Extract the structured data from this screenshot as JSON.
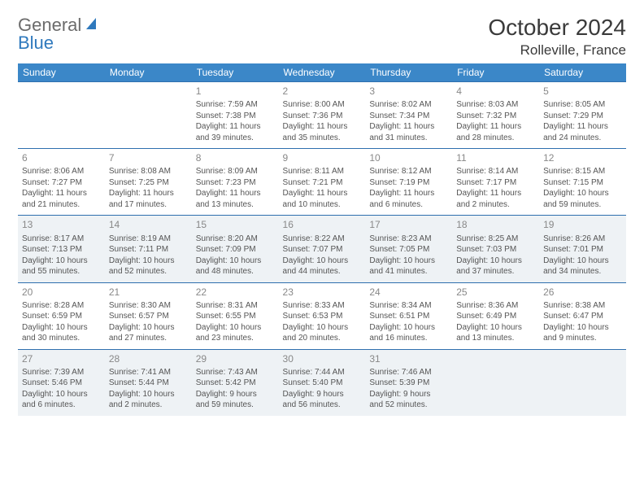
{
  "logo": {
    "text1": "General",
    "text2": "Blue"
  },
  "title": "October 2024",
  "location": "Rolleville, France",
  "colors": {
    "header_bg": "#3b87c8",
    "header_text": "#ffffff",
    "shade_bg": "#eef2f5",
    "sep_border": "#2f6fae",
    "logo_gray": "#6b6b6b",
    "logo_blue": "#2f79bd"
  },
  "day_headers": [
    "Sunday",
    "Monday",
    "Tuesday",
    "Wednesday",
    "Thursday",
    "Friday",
    "Saturday"
  ],
  "weeks": [
    {
      "shaded": false,
      "days": [
        null,
        null,
        {
          "n": "1",
          "sr": "Sunrise: 7:59 AM",
          "ss": "Sunset: 7:38 PM",
          "dl1": "Daylight: 11 hours",
          "dl2": "and 39 minutes."
        },
        {
          "n": "2",
          "sr": "Sunrise: 8:00 AM",
          "ss": "Sunset: 7:36 PM",
          "dl1": "Daylight: 11 hours",
          "dl2": "and 35 minutes."
        },
        {
          "n": "3",
          "sr": "Sunrise: 8:02 AM",
          "ss": "Sunset: 7:34 PM",
          "dl1": "Daylight: 11 hours",
          "dl2": "and 31 minutes."
        },
        {
          "n": "4",
          "sr": "Sunrise: 8:03 AM",
          "ss": "Sunset: 7:32 PM",
          "dl1": "Daylight: 11 hours",
          "dl2": "and 28 minutes."
        },
        {
          "n": "5",
          "sr": "Sunrise: 8:05 AM",
          "ss": "Sunset: 7:29 PM",
          "dl1": "Daylight: 11 hours",
          "dl2": "and 24 minutes."
        }
      ]
    },
    {
      "shaded": false,
      "days": [
        {
          "n": "6",
          "sr": "Sunrise: 8:06 AM",
          "ss": "Sunset: 7:27 PM",
          "dl1": "Daylight: 11 hours",
          "dl2": "and 21 minutes."
        },
        {
          "n": "7",
          "sr": "Sunrise: 8:08 AM",
          "ss": "Sunset: 7:25 PM",
          "dl1": "Daylight: 11 hours",
          "dl2": "and 17 minutes."
        },
        {
          "n": "8",
          "sr": "Sunrise: 8:09 AM",
          "ss": "Sunset: 7:23 PM",
          "dl1": "Daylight: 11 hours",
          "dl2": "and 13 minutes."
        },
        {
          "n": "9",
          "sr": "Sunrise: 8:11 AM",
          "ss": "Sunset: 7:21 PM",
          "dl1": "Daylight: 11 hours",
          "dl2": "and 10 minutes."
        },
        {
          "n": "10",
          "sr": "Sunrise: 8:12 AM",
          "ss": "Sunset: 7:19 PM",
          "dl1": "Daylight: 11 hours",
          "dl2": "and 6 minutes."
        },
        {
          "n": "11",
          "sr": "Sunrise: 8:14 AM",
          "ss": "Sunset: 7:17 PM",
          "dl1": "Daylight: 11 hours",
          "dl2": "and 2 minutes."
        },
        {
          "n": "12",
          "sr": "Sunrise: 8:15 AM",
          "ss": "Sunset: 7:15 PM",
          "dl1": "Daylight: 10 hours",
          "dl2": "and 59 minutes."
        }
      ]
    },
    {
      "shaded": true,
      "days": [
        {
          "n": "13",
          "sr": "Sunrise: 8:17 AM",
          "ss": "Sunset: 7:13 PM",
          "dl1": "Daylight: 10 hours",
          "dl2": "and 55 minutes."
        },
        {
          "n": "14",
          "sr": "Sunrise: 8:19 AM",
          "ss": "Sunset: 7:11 PM",
          "dl1": "Daylight: 10 hours",
          "dl2": "and 52 minutes."
        },
        {
          "n": "15",
          "sr": "Sunrise: 8:20 AM",
          "ss": "Sunset: 7:09 PM",
          "dl1": "Daylight: 10 hours",
          "dl2": "and 48 minutes."
        },
        {
          "n": "16",
          "sr": "Sunrise: 8:22 AM",
          "ss": "Sunset: 7:07 PM",
          "dl1": "Daylight: 10 hours",
          "dl2": "and 44 minutes."
        },
        {
          "n": "17",
          "sr": "Sunrise: 8:23 AM",
          "ss": "Sunset: 7:05 PM",
          "dl1": "Daylight: 10 hours",
          "dl2": "and 41 minutes."
        },
        {
          "n": "18",
          "sr": "Sunrise: 8:25 AM",
          "ss": "Sunset: 7:03 PM",
          "dl1": "Daylight: 10 hours",
          "dl2": "and 37 minutes."
        },
        {
          "n": "19",
          "sr": "Sunrise: 8:26 AM",
          "ss": "Sunset: 7:01 PM",
          "dl1": "Daylight: 10 hours",
          "dl2": "and 34 minutes."
        }
      ]
    },
    {
      "shaded": false,
      "days": [
        {
          "n": "20",
          "sr": "Sunrise: 8:28 AM",
          "ss": "Sunset: 6:59 PM",
          "dl1": "Daylight: 10 hours",
          "dl2": "and 30 minutes."
        },
        {
          "n": "21",
          "sr": "Sunrise: 8:30 AM",
          "ss": "Sunset: 6:57 PM",
          "dl1": "Daylight: 10 hours",
          "dl2": "and 27 minutes."
        },
        {
          "n": "22",
          "sr": "Sunrise: 8:31 AM",
          "ss": "Sunset: 6:55 PM",
          "dl1": "Daylight: 10 hours",
          "dl2": "and 23 minutes."
        },
        {
          "n": "23",
          "sr": "Sunrise: 8:33 AM",
          "ss": "Sunset: 6:53 PM",
          "dl1": "Daylight: 10 hours",
          "dl2": "and 20 minutes."
        },
        {
          "n": "24",
          "sr": "Sunrise: 8:34 AM",
          "ss": "Sunset: 6:51 PM",
          "dl1": "Daylight: 10 hours",
          "dl2": "and 16 minutes."
        },
        {
          "n": "25",
          "sr": "Sunrise: 8:36 AM",
          "ss": "Sunset: 6:49 PM",
          "dl1": "Daylight: 10 hours",
          "dl2": "and 13 minutes."
        },
        {
          "n": "26",
          "sr": "Sunrise: 8:38 AM",
          "ss": "Sunset: 6:47 PM",
          "dl1": "Daylight: 10 hours",
          "dl2": "and 9 minutes."
        }
      ]
    },
    {
      "shaded": true,
      "days": [
        {
          "n": "27",
          "sr": "Sunrise: 7:39 AM",
          "ss": "Sunset: 5:46 PM",
          "dl1": "Daylight: 10 hours",
          "dl2": "and 6 minutes."
        },
        {
          "n": "28",
          "sr": "Sunrise: 7:41 AM",
          "ss": "Sunset: 5:44 PM",
          "dl1": "Daylight: 10 hours",
          "dl2": "and 2 minutes."
        },
        {
          "n": "29",
          "sr": "Sunrise: 7:43 AM",
          "ss": "Sunset: 5:42 PM",
          "dl1": "Daylight: 9 hours",
          "dl2": "and 59 minutes."
        },
        {
          "n": "30",
          "sr": "Sunrise: 7:44 AM",
          "ss": "Sunset: 5:40 PM",
          "dl1": "Daylight: 9 hours",
          "dl2": "and 56 minutes."
        },
        {
          "n": "31",
          "sr": "Sunrise: 7:46 AM",
          "ss": "Sunset: 5:39 PM",
          "dl1": "Daylight: 9 hours",
          "dl2": "and 52 minutes."
        },
        null,
        null
      ]
    }
  ]
}
